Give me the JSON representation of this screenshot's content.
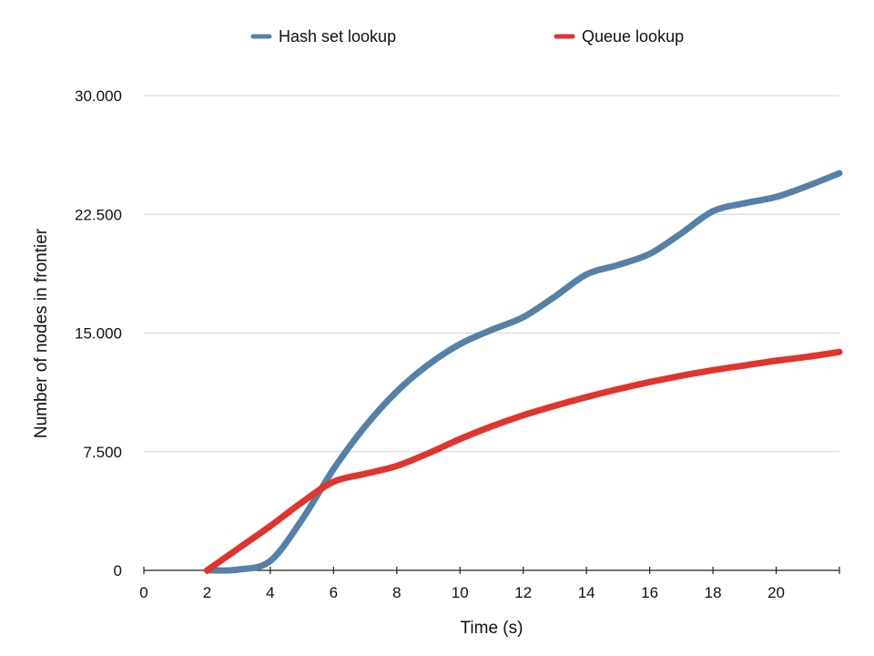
{
  "chart_data": {
    "type": "line",
    "xlabel": "Time (s)",
    "ylabel": "Number of nodes in frontier",
    "xlim": [
      0,
      22
    ],
    "ylim": [
      0,
      30000
    ],
    "x_ticks": [
      0,
      2,
      4,
      6,
      8,
      10,
      12,
      14,
      16,
      18,
      20
    ],
    "x_tick_labels": [
      "0",
      "2",
      "4",
      "6",
      "8",
      "10",
      "12",
      "14",
      "16",
      "18",
      "20"
    ],
    "y_ticks": [
      0,
      7500,
      15000,
      22500,
      30000
    ],
    "y_tick_labels": [
      "0",
      "7.500",
      "15.000",
      "22.500",
      "30.000"
    ],
    "grid": true,
    "legend_position": "top",
    "series": [
      {
        "name": "Hash set lookup",
        "color": "#5580a8",
        "x": [
          2,
          3,
          4,
          5,
          6,
          7,
          8,
          9,
          10,
          11,
          12,
          13,
          14,
          15,
          16,
          17,
          18,
          19,
          20,
          21,
          22
        ],
        "values": [
          0,
          50,
          600,
          3200,
          6400,
          9100,
          11300,
          13000,
          14300,
          15200,
          16000,
          17300,
          18700,
          19300,
          20000,
          21300,
          22700,
          23200,
          23600,
          24300,
          25100
        ]
      },
      {
        "name": "Queue lookup",
        "color": "#e0342c",
        "x": [
          2,
          3,
          4,
          5,
          6,
          7,
          8,
          9,
          10,
          11,
          12,
          13,
          14,
          15,
          16,
          17,
          18,
          19,
          20,
          21,
          22
        ],
        "values": [
          0,
          1400,
          2800,
          4300,
          5600,
          6100,
          6600,
          7400,
          8300,
          9100,
          9800,
          10400,
          10950,
          11450,
          11900,
          12300,
          12650,
          12950,
          13250,
          13500,
          13800
        ]
      }
    ]
  }
}
